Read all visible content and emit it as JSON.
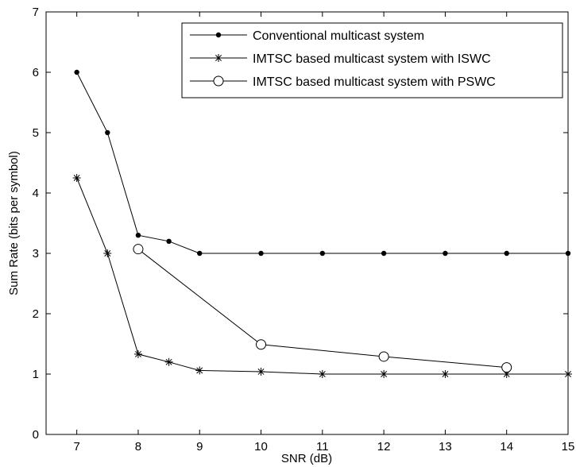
{
  "chart_data": {
    "type": "line",
    "title": "",
    "xlabel": "SNR (dB)",
    "ylabel": "Sum Rate (bits per symbol)",
    "xlim": [
      6.5,
      15
    ],
    "ylim": [
      0,
      7
    ],
    "xticks": [
      7,
      8,
      9,
      10,
      11,
      12,
      13,
      14,
      15
    ],
    "yticks": [
      0,
      1,
      2,
      3,
      4,
      5,
      6,
      7
    ],
    "grid": false,
    "legend_position": "top-right",
    "series": [
      {
        "name": "Conventional multicast system",
        "marker": "dot",
        "x": [
          7,
          7.5,
          8,
          8.5,
          9,
          10,
          11,
          12,
          13,
          14,
          15
        ],
        "y": [
          6.0,
          5.0,
          3.3,
          3.2,
          3.0,
          3.0,
          3.0,
          3.0,
          3.0,
          3.0,
          3.0
        ]
      },
      {
        "name": "IMTSC based multicast system with ISWC",
        "marker": "star",
        "x": [
          7,
          7.5,
          8,
          8.5,
          9,
          10,
          11,
          12,
          13,
          14,
          15
        ],
        "y": [
          4.25,
          3.0,
          1.33,
          1.2,
          1.06,
          1.04,
          1.0,
          1.0,
          1.0,
          1.0,
          1.0
        ]
      },
      {
        "name": "IMTSC based multicast system with PSWC",
        "marker": "circle",
        "x": [
          8,
          10,
          12,
          14
        ],
        "y": [
          3.07,
          1.49,
          1.29,
          1.11
        ]
      }
    ]
  }
}
